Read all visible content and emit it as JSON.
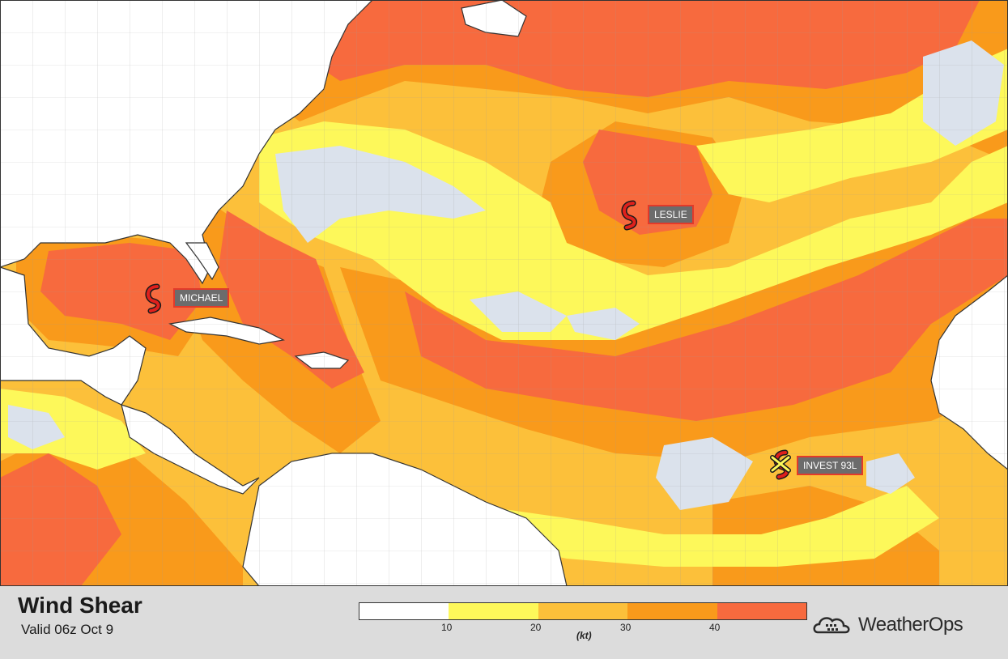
{
  "title": "Wind Shear",
  "valid": "Valid 06z Oct 9",
  "legend": {
    "unit": "(kt)",
    "ticks": [
      "10",
      "20",
      "30",
      "40"
    ],
    "colors": [
      "#ffffff",
      "#fdf85a",
      "#fcc03a",
      "#f99a1b",
      "#f76a3e"
    ]
  },
  "storms": [
    {
      "name": "MICHAEL",
      "icon": "hurricane-icon"
    },
    {
      "name": "LESLIE",
      "icon": "hurricane-icon"
    },
    {
      "name": "INVEST 93L",
      "icon": "invest-x-icon"
    }
  ],
  "brand": "WeatherOps",
  "colors": {
    "land": "#ffffff",
    "low_shear": "#dbe2ec",
    "border": "#333333",
    "label_border": "#e23a2a"
  }
}
